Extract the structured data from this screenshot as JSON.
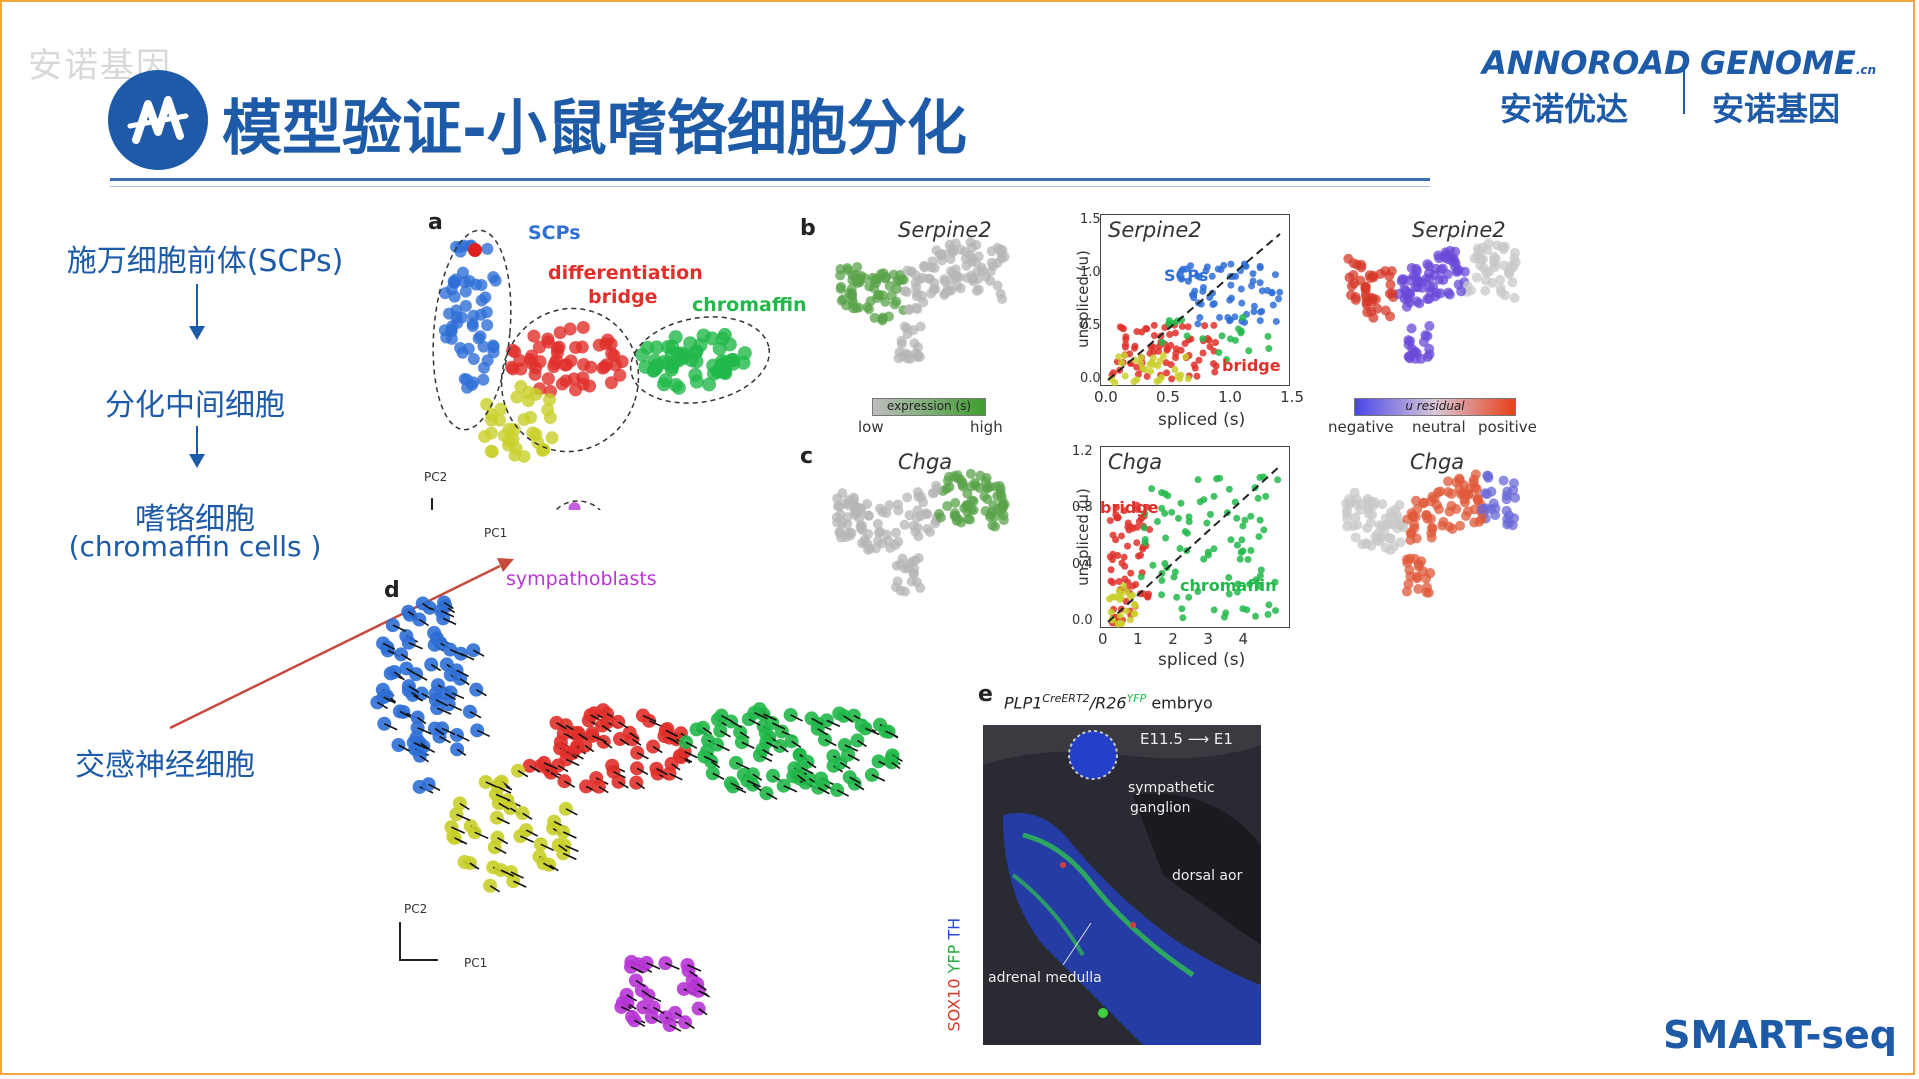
{
  "header": {
    "watermark": "安诺基因",
    "title": "模型验证-小鼠嗜铬细胞分化"
  },
  "brand": {
    "left_en": "ANNOROAD",
    "left_cn": "安诺优达",
    "right_en": "GENOME",
    "right_suffix": ".cn",
    "right_cn": "安诺基因"
  },
  "flow": {
    "step1": "施万细胞前体(SCPs)",
    "step2": "分化中间细胞",
    "step3_line1": "嗜铬细胞",
    "step3_line2": "(chromaffin cells )",
    "sympathetic": "交感神经细胞"
  },
  "figure": {
    "panel_a": {
      "letter": "a",
      "scps": "SCPs",
      "bridge_line1": "differentiation",
      "bridge_line2": "bridge",
      "chromaffin": "chromaffin",
      "sympathoblasts": "sympathoblasts",
      "pc1": "PC1",
      "pc2": "PC2"
    },
    "panel_b": {
      "letter": "b",
      "gene": "Serpine2",
      "legend_title": "expression (s)",
      "legend_low": "low",
      "legend_high": "high",
      "scatter_scps": "SCPs",
      "scatter_bridge": "bridge",
      "xlabel": "spliced (s)",
      "ylabel": "unspliced (u)",
      "xticks": [
        "0.0",
        "0.5",
        "1.0",
        "1.5"
      ],
      "yticks": [
        "0.0",
        "0.5",
        "1.0",
        "1.5"
      ],
      "residual_title": "u residual",
      "residual_neg": "negative",
      "residual_neu": "neutral",
      "residual_pos": "positive"
    },
    "panel_c": {
      "letter": "c",
      "gene": "Chga",
      "scatter_bridge": "bridge",
      "scatter_chromaffin": "chromaffin",
      "xlabel": "spliced (s)",
      "ylabel": "unspliced (u)",
      "xticks": [
        "0",
        "1",
        "2",
        "3",
        "4"
      ],
      "yticks": [
        "0.0",
        "0.4",
        "0.8",
        "1.2"
      ]
    },
    "panel_d": {
      "letter": "d",
      "pc1": "PC1",
      "pc2": "PC2"
    },
    "panel_e": {
      "letter": "e",
      "caption_a": "PLP1",
      "caption_sup1": "CreERT2",
      "caption_b": "/R26",
      "caption_sup2": "YFP",
      "caption_c": " embryo",
      "stage": "E11.5 ⟶ E1",
      "sympathetic_line1": "sympathetic",
      "sympathetic_line2": "ganglion",
      "dorsal": "dorsal aor",
      "adrenal": "adrenal medulla",
      "stain_sox10": "SOX10",
      "stain_yfp": "YFP",
      "stain_th": "TH"
    }
  },
  "footer": "SMART-seq",
  "colors": {
    "brand_blue": "#1d5aa8",
    "scps": "#2f6fd6",
    "bridge": "#e0302a",
    "chromaffin": "#22b84a",
    "yellow": "#c9cf2a",
    "sympathoblasts": "#b836d6",
    "border": "#f2a73c"
  }
}
